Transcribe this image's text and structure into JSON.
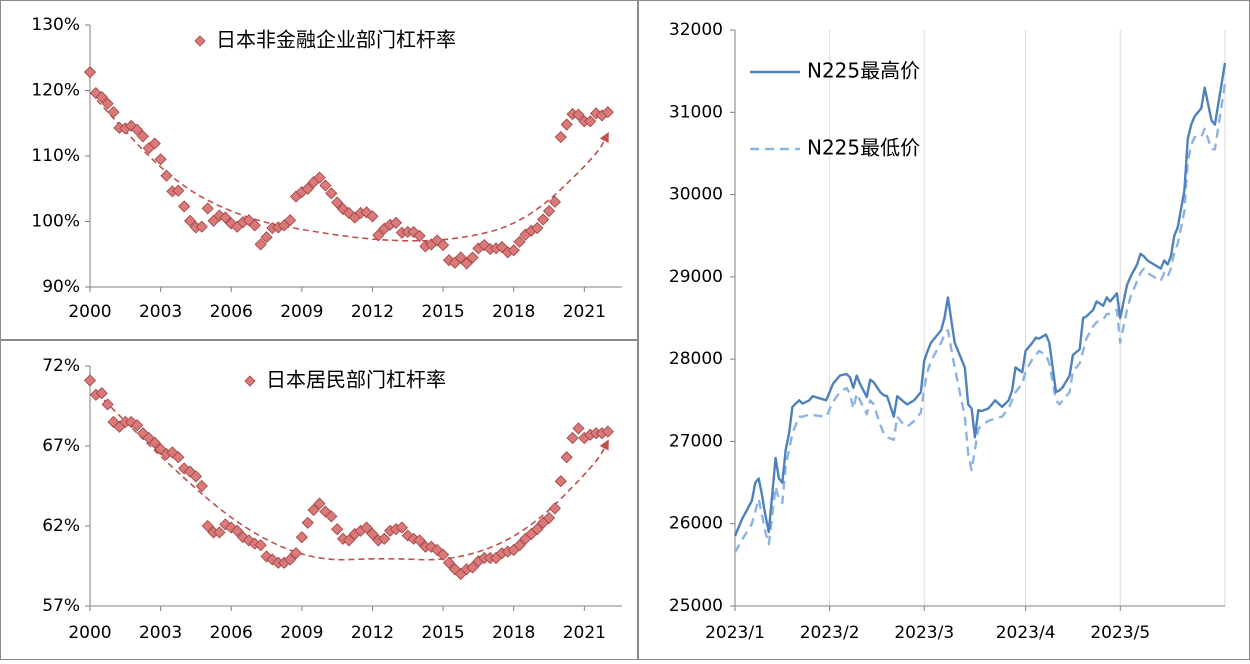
{
  "chart_data": [
    {
      "id": "corp",
      "type": "scatter",
      "series": [
        {
          "name": "日本非金融企业部门杠杆率",
          "color": "#C0504D",
          "marker": "diamond",
          "x": [
            2000.0,
            2000.25,
            2000.5,
            2000.75,
            2001.0,
            2001.25,
            2001.5,
            2001.75,
            2002.0,
            2002.25,
            2002.5,
            2002.75,
            2003.0,
            2003.25,
            2003.5,
            2003.75,
            2004.0,
            2004.25,
            2004.5,
            2004.75,
            2005.0,
            2005.25,
            2005.5,
            2005.75,
            2006.0,
            2006.25,
            2006.5,
            2006.75,
            2007.0,
            2007.25,
            2007.5,
            2007.75,
            2008.0,
            2008.25,
            2008.5,
            2008.75,
            2009.0,
            2009.25,
            2009.5,
            2009.75,
            2010.0,
            2010.25,
            2010.5,
            2010.75,
            2011.0,
            2011.25,
            2011.5,
            2011.75,
            2012.0,
            2012.25,
            2012.5,
            2012.75,
            2013.0,
            2013.25,
            2013.5,
            2013.75,
            2014.0,
            2014.25,
            2014.5,
            2014.75,
            2015.0,
            2015.25,
            2015.5,
            2015.75,
            2016.0,
            2016.25,
            2016.5,
            2016.75,
            2017.0,
            2017.25,
            2017.5,
            2017.75,
            2018.0,
            2018.25,
            2018.5,
            2018.75,
            2019.0,
            2019.25,
            2019.5,
            2019.75,
            2020.0,
            2020.25,
            2020.5,
            2020.75,
            2021.0,
            2021.25,
            2021.5,
            2021.75,
            2022.0
          ],
          "values": [
            122.8,
            119.6,
            119.0,
            118.0,
            116.7,
            114.3,
            114.2,
            114.6,
            114.0,
            113.0,
            111.2,
            111.9,
            109.5,
            107.0,
            104.6,
            104.7,
            102.3,
            100.1,
            99.1,
            99.2,
            102.0,
            100.1,
            100.9,
            100.6,
            99.7,
            99.2,
            99.9,
            100.2,
            99.4,
            96.5,
            97.6,
            99.0,
            99.1,
            99.4,
            100.2,
            103.8,
            104.5,
            105.0,
            106.0,
            106.7,
            105.5,
            104.3,
            102.9,
            101.9,
            101.3,
            100.6,
            101.3,
            101.4,
            100.8,
            97.9,
            98.9,
            99.5,
            99.8,
            98.3,
            98.4,
            98.4,
            97.8,
            96.2,
            96.5,
            97.1,
            96.4,
            94.1,
            93.7,
            94.5,
            93.6,
            94.5,
            95.9,
            96.4,
            95.8,
            95.9,
            96.1,
            95.3,
            95.6,
            96.9,
            98.0,
            98.6,
            99.0,
            100.3,
            101.6,
            103.0,
            112.9,
            114.8,
            116.4,
            116.3,
            115.3,
            115.3,
            116.5,
            116.2,
            116.7
          ]
        }
      ],
      "trend": {
        "x": [
          2000.3,
          2003.5,
          2006.5,
          2009.5,
          2012.5,
          2015.5,
          2018.5,
          2021.5,
          2022.0
        ],
        "values": [
          118.5,
          106.0,
          100.5,
          98.4,
          97.0,
          97.1,
          99.8,
          110.0,
          113.4
        ]
      },
      "xlim": [
        2000.0,
        2022.6
      ],
      "ylim": [
        90,
        130
      ],
      "x_ticks": [
        2000,
        2003,
        2006,
        2009,
        2012,
        2015,
        2018,
        2021
      ],
      "y_ticks": [
        90,
        100,
        110,
        120,
        130
      ],
      "y_tick_labels": [
        "90%",
        "100%",
        "110%",
        "120%",
        "130%"
      ]
    },
    {
      "id": "house",
      "type": "scatter",
      "series": [
        {
          "name": "日本居民部门杠杆率",
          "color": "#C0504D",
          "marker": "diamond",
          "x": [
            2000.0,
            2000.25,
            2000.5,
            2000.75,
            2001.0,
            2001.25,
            2001.5,
            2001.75,
            2002.0,
            2002.25,
            2002.5,
            2002.75,
            2003.0,
            2003.25,
            2003.5,
            2003.75,
            2004.0,
            2004.25,
            2004.5,
            2004.75,
            2005.0,
            2005.25,
            2005.5,
            2005.75,
            2006.0,
            2006.25,
            2006.5,
            2006.75,
            2007.0,
            2007.25,
            2007.5,
            2007.75,
            2008.0,
            2008.25,
            2008.5,
            2008.75,
            2009.0,
            2009.25,
            2009.5,
            2009.75,
            2010.0,
            2010.25,
            2010.5,
            2010.75,
            2011.0,
            2011.25,
            2011.5,
            2011.75,
            2012.0,
            2012.25,
            2012.5,
            2012.75,
            2013.0,
            2013.25,
            2013.5,
            2013.75,
            2014.0,
            2014.25,
            2014.5,
            2014.75,
            2015.0,
            2015.25,
            2015.5,
            2015.75,
            2016.0,
            2016.25,
            2016.5,
            2016.75,
            2017.0,
            2017.25,
            2017.5,
            2017.75,
            2018.0,
            2018.25,
            2018.5,
            2018.75,
            2019.0,
            2019.25,
            2019.5,
            2019.75,
            2020.0,
            2020.25,
            2020.5,
            2020.75,
            2021.0,
            2021.25,
            2021.5,
            2021.75,
            2022.0
          ],
          "values": [
            71.1,
            70.2,
            70.3,
            69.6,
            68.5,
            68.2,
            68.5,
            68.5,
            68.3,
            67.8,
            67.5,
            67.2,
            66.8,
            66.5,
            66.6,
            66.3,
            65.6,
            65.4,
            65.1,
            64.5,
            62.0,
            61.6,
            61.6,
            62.1,
            61.9,
            61.7,
            61.3,
            61.1,
            60.9,
            60.8,
            60.1,
            59.9,
            59.7,
            59.7,
            59.9,
            60.3,
            61.3,
            62.2,
            63.0,
            63.4,
            62.9,
            62.6,
            61.8,
            61.2,
            61.1,
            61.5,
            61.7,
            61.9,
            61.5,
            61.1,
            61.2,
            61.7,
            61.8,
            61.9,
            61.4,
            61.2,
            61.1,
            60.7,
            60.7,
            60.5,
            60.2,
            59.7,
            59.3,
            59.0,
            59.3,
            59.4,
            59.8,
            60.0,
            60.0,
            60.0,
            60.3,
            60.4,
            60.5,
            60.8,
            61.2,
            61.5,
            61.8,
            62.2,
            62.5,
            63.1,
            64.8,
            66.3,
            67.5,
            68.1,
            67.5,
            67.7,
            67.8,
            67.8,
            67.9
          ]
        }
      ],
      "trend": {
        "x": [
          2000.3,
          2003.5,
          2006.5,
          2009.5,
          2012.5,
          2015.5,
          2018.5,
          2021.5,
          2022.0
        ],
        "values": [
          70.3,
          65.6,
          61.8,
          59.8,
          60.0,
          59.8,
          61.5,
          65.9,
          67.3
        ]
      },
      "xlim": [
        2000.0,
        2022.6
      ],
      "ylim": [
        57,
        72
      ],
      "x_ticks": [
        2000,
        2003,
        2006,
        2009,
        2012,
        2015,
        2018,
        2021
      ],
      "y_ticks": [
        57,
        62,
        67,
        72
      ],
      "y_tick_labels": [
        "57%",
        "62%",
        "67%",
        "72%"
      ]
    },
    {
      "id": "n225",
      "type": "line",
      "x_tick_labels": [
        "2023/1",
        "2023/2",
        "2023/3",
        "2023/4",
        "2023/5"
      ],
      "x_tick_dates": [
        "2023-01-04",
        "2023-02-01",
        "2023-03-01",
        "2023-03-31",
        "2023-04-28"
      ],
      "xlim": [
        "2023-01-04",
        "2023-05-29"
      ],
      "ylim": [
        25000,
        32000
      ],
      "y_ticks": [
        25000,
        26000,
        27000,
        28000,
        29000,
        30000,
        31000,
        32000
      ],
      "series": [
        {
          "name": "N225最高价",
          "color": "#4F81BD",
          "dash": "solid",
          "x": [
            "2023-01-04",
            "2023-01-06",
            "2023-01-09",
            "2023-01-10",
            "2023-01-11",
            "2023-01-12",
            "2023-01-13",
            "2023-01-14",
            "2023-01-16",
            "2023-01-17",
            "2023-01-18",
            "2023-01-19",
            "2023-01-20",
            "2023-01-21",
            "2023-01-23",
            "2023-01-24",
            "2023-01-26",
            "2023-01-27",
            "2023-01-31",
            "2023-02-02",
            "2023-02-04",
            "2023-02-06",
            "2023-02-07",
            "2023-02-08",
            "2023-02-09",
            "2023-02-10",
            "2023-02-12",
            "2023-02-13",
            "2023-02-14",
            "2023-02-16",
            "2023-02-17",
            "2023-02-18",
            "2023-02-20",
            "2023-02-21",
            "2023-02-23",
            "2023-02-24",
            "2023-02-26",
            "2023-02-28",
            "2023-03-01",
            "2023-03-02",
            "2023-03-03",
            "2023-03-06",
            "2023-03-07",
            "2023-03-08",
            "2023-03-10",
            "2023-03-13",
            "2023-03-14",
            "2023-03-15",
            "2023-03-16",
            "2023-03-17",
            "2023-03-18",
            "2023-03-20",
            "2023-03-22",
            "2023-03-24",
            "2023-03-26",
            "2023-03-27",
            "2023-03-28",
            "2023-03-30",
            "2023-03-31",
            "2023-04-02",
            "2023-04-03",
            "2023-04-04",
            "2023-04-06",
            "2023-04-07",
            "2023-04-09",
            "2023-04-10",
            "2023-04-11",
            "2023-04-13",
            "2023-04-14",
            "2023-04-16",
            "2023-04-17",
            "2023-04-18",
            "2023-04-20",
            "2023-04-21",
            "2023-04-23",
            "2023-04-24",
            "2023-04-25",
            "2023-04-27",
            "2023-04-28",
            "2023-04-30",
            "2023-05-01",
            "2023-05-03",
            "2023-05-04",
            "2023-05-05",
            "2023-05-06",
            "2023-05-08",
            "2023-05-10",
            "2023-05-11",
            "2023-05-12",
            "2023-05-13",
            "2023-05-14",
            "2023-05-15",
            "2023-05-17",
            "2023-05-18",
            "2023-05-19",
            "2023-05-20",
            "2023-05-22",
            "2023-05-23",
            "2023-05-25",
            "2023-05-26",
            "2023-05-29"
          ],
          "values": [
            25850,
            26050,
            26280,
            26500,
            26550,
            26350,
            26100,
            25900,
            26800,
            26550,
            26500,
            26900,
            27100,
            27420,
            27500,
            27460,
            27500,
            27550,
            27500,
            27700,
            27800,
            27820,
            27780,
            27650,
            27800,
            27700,
            27540,
            27750,
            27720,
            27600,
            27560,
            27550,
            27300,
            27550,
            27480,
            27450,
            27500,
            27600,
            27980,
            28100,
            28200,
            28350,
            28500,
            28750,
            28200,
            27900,
            27450,
            27400,
            27050,
            27380,
            27370,
            27400,
            27500,
            27420,
            27500,
            27620,
            27900,
            27840,
            28100,
            28200,
            28260,
            28250,
            28300,
            28200,
            27600,
            27620,
            27660,
            27800,
            28050,
            28120,
            28500,
            28520,
            28600,
            28700,
            28650,
            28750,
            28700,
            28800,
            28500,
            28900,
            29000,
            29150,
            29280,
            29250,
            29200,
            29150,
            29100,
            29200,
            29150,
            29250,
            29500,
            29600,
            30050,
            30680,
            30850,
            30950,
            31050,
            31300,
            30900,
            30850,
            31600
          ]
        },
        {
          "name": "N225最低价",
          "color": "#8DB3E2",
          "dash": "dashed",
          "x": [
            "2023-01-04",
            "2023-01-06",
            "2023-01-09",
            "2023-01-10",
            "2023-01-11",
            "2023-01-12",
            "2023-01-13",
            "2023-01-14",
            "2023-01-16",
            "2023-01-17",
            "2023-01-18",
            "2023-01-19",
            "2023-01-20",
            "2023-01-21",
            "2023-01-23",
            "2023-01-24",
            "2023-01-26",
            "2023-01-27",
            "2023-01-31",
            "2023-02-02",
            "2023-02-04",
            "2023-02-06",
            "2023-02-07",
            "2023-02-08",
            "2023-02-09",
            "2023-02-10",
            "2023-02-12",
            "2023-02-13",
            "2023-02-14",
            "2023-02-16",
            "2023-02-17",
            "2023-02-18",
            "2023-02-20",
            "2023-02-21",
            "2023-02-23",
            "2023-02-24",
            "2023-02-26",
            "2023-02-28",
            "2023-03-01",
            "2023-03-02",
            "2023-03-03",
            "2023-03-06",
            "2023-03-07",
            "2023-03-08",
            "2023-03-10",
            "2023-03-13",
            "2023-03-14",
            "2023-03-15",
            "2023-03-16",
            "2023-03-17",
            "2023-03-18",
            "2023-03-20",
            "2023-03-22",
            "2023-03-24",
            "2023-03-26",
            "2023-03-27",
            "2023-03-28",
            "2023-03-30",
            "2023-03-31",
            "2023-04-02",
            "2023-04-03",
            "2023-04-04",
            "2023-04-06",
            "2023-04-07",
            "2023-04-09",
            "2023-04-10",
            "2023-04-11",
            "2023-04-13",
            "2023-04-14",
            "2023-04-16",
            "2023-04-17",
            "2023-04-18",
            "2023-04-20",
            "2023-04-21",
            "2023-04-23",
            "2023-04-24",
            "2023-04-25",
            "2023-04-27",
            "2023-04-28",
            "2023-04-30",
            "2023-05-01",
            "2023-05-03",
            "2023-05-04",
            "2023-05-05",
            "2023-05-06",
            "2023-05-08",
            "2023-05-10",
            "2023-05-11",
            "2023-05-12",
            "2023-05-13",
            "2023-05-14",
            "2023-05-15",
            "2023-05-17",
            "2023-05-18",
            "2023-05-19",
            "2023-05-20",
            "2023-05-22",
            "2023-05-23",
            "2023-05-25",
            "2023-05-26",
            "2023-05-29"
          ],
          "values": [
            25650,
            25800,
            26000,
            26150,
            26300,
            26100,
            25900,
            25750,
            26450,
            26300,
            26250,
            26700,
            26900,
            27100,
            27300,
            27300,
            27330,
            27320,
            27300,
            27480,
            27600,
            27650,
            27580,
            27400,
            27580,
            27500,
            27330,
            27500,
            27450,
            27200,
            27100,
            27050,
            27020,
            27300,
            27200,
            27180,
            27250,
            27350,
            27650,
            27850,
            27980,
            28200,
            28300,
            28350,
            27900,
            27300,
            26850,
            26650,
            26900,
            27150,
            27200,
            27250,
            27280,
            27300,
            27400,
            27500,
            27600,
            27700,
            27850,
            28000,
            28050,
            28100,
            28050,
            27950,
            27500,
            27450,
            27500,
            27600,
            27850,
            27950,
            28100,
            28250,
            28400,
            28450,
            28480,
            28550,
            28550,
            28600,
            28200,
            28600,
            28750,
            28950,
            29050,
            29100,
            29050,
            29000,
            28950,
            29050,
            29000,
            29100,
            29300,
            29400,
            29800,
            30400,
            30600,
            30700,
            30700,
            30800,
            30550,
            30550,
            31350
          ]
        }
      ]
    }
  ]
}
